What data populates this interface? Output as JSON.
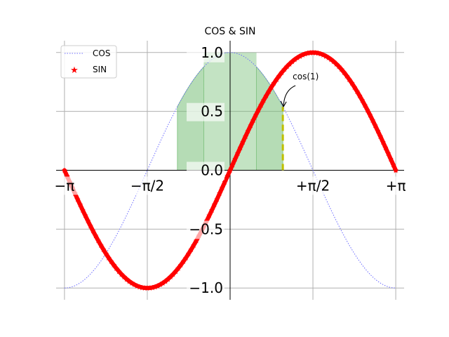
{
  "chart_data": {
    "type": "line",
    "title": "COS & SIN",
    "xlim": [
      -3.3,
      3.3
    ],
    "ylim": [
      -1.1,
      1.1
    ],
    "x_ticks": [
      {
        "value": -3.14159,
        "label": "−π"
      },
      {
        "value": -1.5708,
        "label": "−π/2"
      },
      {
        "value": 1.5708,
        "label": "+π/2"
      },
      {
        "value": 3.14159,
        "label": "+π"
      }
    ],
    "y_ticks": [
      {
        "value": -1.0,
        "label": "−1.0"
      },
      {
        "value": -0.5,
        "label": "−0.5"
      },
      {
        "value": 0.0,
        "label": "0.0"
      },
      {
        "value": 0.5,
        "label": "0.5"
      },
      {
        "value": 1.0,
        "label": "1.0"
      }
    ],
    "grid": true,
    "legend_position": "top-left",
    "series": [
      {
        "name": "COS",
        "function": "cos",
        "x_range": [
          -3.14159,
          3.14159
        ],
        "color": "#6b6bff",
        "style": "dotted"
      },
      {
        "name": "SIN",
        "function": "sin",
        "x_range": [
          -3.14159,
          3.14159
        ],
        "color": "#ff0000",
        "style": "star-markers"
      }
    ],
    "fill_regions": [
      {
        "x_range": [
          -1.0,
          -0.5
        ],
        "under": "cos",
        "color": "#79c079"
      },
      {
        "x_range": [
          0.5,
          1.0
        ],
        "under": "cos",
        "color": "#79c079"
      }
    ],
    "green_box": {
      "x_range": [
        -0.5,
        0.5
      ],
      "y_range": [
        0.0,
        1.0
      ],
      "color": "#79c079"
    },
    "vline": {
      "x": 1.0,
      "y_range": [
        0.0,
        0.5403
      ],
      "color": "#bfbf00",
      "style": "dashed"
    },
    "annotation": {
      "text": "cos(1)",
      "point": [
        1.0,
        0.5403
      ]
    }
  }
}
